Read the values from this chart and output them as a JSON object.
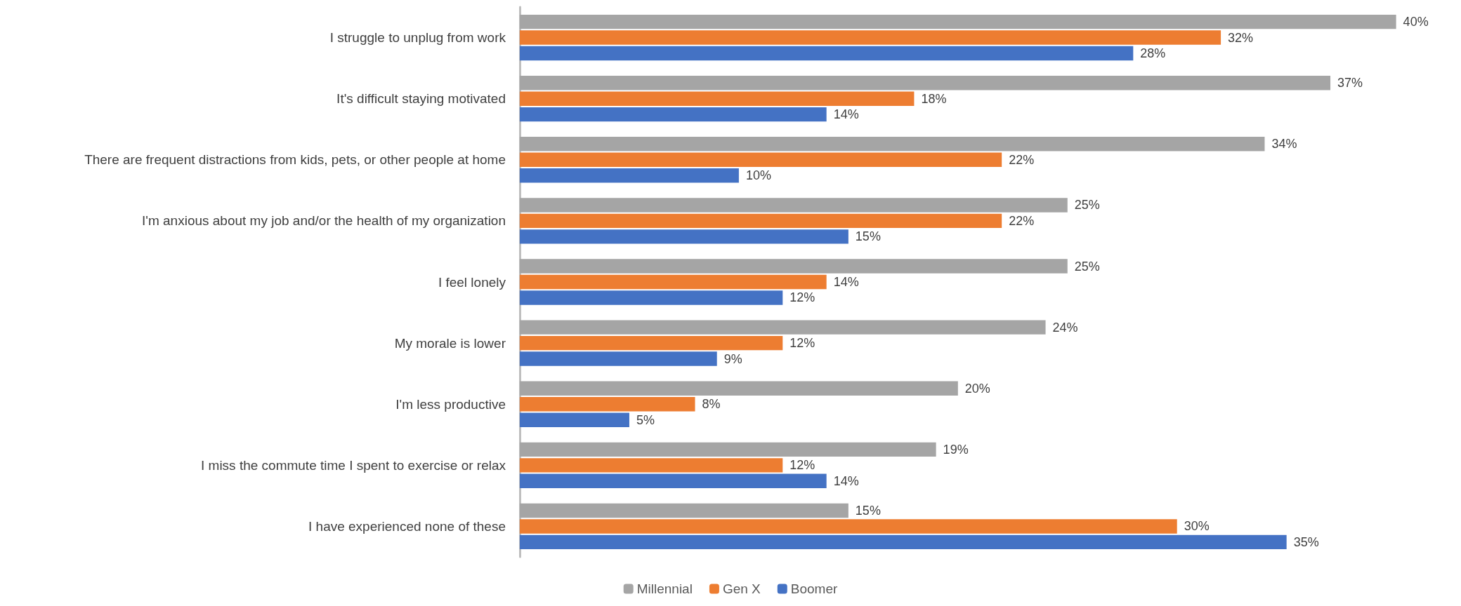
{
  "chart_data": {
    "type": "bar",
    "orientation": "horizontal",
    "legend": "bottom",
    "grid": false,
    "categories": [
      "I struggle to unplug from work",
      "It's difficult staying motivated",
      "There are frequent distractions from kids, pets, or other people at home",
      "I'm anxious about my job and/or the health of my organization",
      "I feel lonely",
      "My morale is lower",
      "I'm less productive",
      "I miss the commute time I spent to exercise or relax",
      "I have experienced none of these"
    ],
    "series": [
      {
        "name": "Millennial",
        "color": "#a5a5a5",
        "values": [
          40,
          37,
          34,
          25,
          25,
          24,
          20,
          19,
          15
        ],
        "value_labels": [
          "40%",
          "37%",
          "34%",
          "25%",
          "25%",
          "24%",
          "20%",
          "19%",
          "15%"
        ]
      },
      {
        "name": "Gen X",
        "color": "#ed7d31",
        "values": [
          32,
          18,
          22,
          22,
          14,
          12,
          8,
          12,
          30
        ],
        "value_labels": [
          "32%",
          "18%",
          "22%",
          "22%",
          "14%",
          "12%",
          "8%",
          "12%",
          "30%"
        ]
      },
      {
        "name": "Boomer",
        "color": "#4472c4",
        "values": [
          28,
          14,
          10,
          15,
          12,
          9,
          5,
          14,
          35
        ],
        "value_labels": [
          "28%",
          "14%",
          "10%",
          "15%",
          "12%",
          "9%",
          "5%",
          "14%",
          "35%"
        ]
      }
    ]
  }
}
